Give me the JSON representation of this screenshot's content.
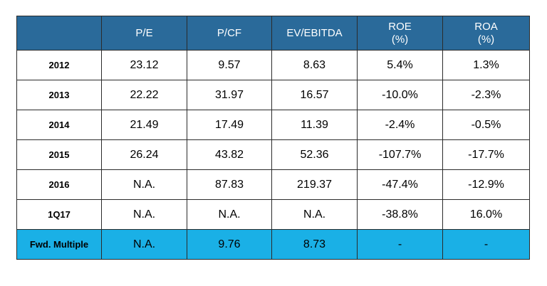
{
  "colors": {
    "header_bg": "#2a6a9a",
    "highlight_bg": "#1ab0e6",
    "border": "#2b2b2b"
  },
  "table": {
    "headers": [
      {
        "label": "",
        "sub": ""
      },
      {
        "label": "P/E",
        "sub": ""
      },
      {
        "label": "P/CF",
        "sub": ""
      },
      {
        "label": "EV/EBITDA",
        "sub": ""
      },
      {
        "label": "ROE",
        "sub": "(%)"
      },
      {
        "label": "ROA",
        "sub": "(%)"
      }
    ],
    "rows": [
      {
        "label": "2012",
        "cells": [
          "23.12",
          "9.57",
          "8.63",
          "5.4%",
          "1.3%"
        ]
      },
      {
        "label": "2013",
        "cells": [
          "22.22",
          "31.97",
          "16.57",
          "-10.0%",
          "-2.3%"
        ]
      },
      {
        "label": "2014",
        "cells": [
          "21.49",
          "17.49",
          "11.39",
          "-2.4%",
          "-0.5%"
        ]
      },
      {
        "label": "2015",
        "cells": [
          "26.24",
          "43.82",
          "52.36",
          "-107.7%",
          "-17.7%"
        ]
      },
      {
        "label": "2016",
        "cells": [
          "N.A.",
          "87.83",
          "219.37",
          "-47.4%",
          "-12.9%"
        ]
      },
      {
        "label": "1Q17",
        "cells": [
          "N.A.",
          "N.A.",
          "N.A.",
          "-38.8%",
          "16.0%"
        ]
      },
      {
        "label": "Fwd. Multiple",
        "cells": [
          "N.A.",
          "9.76",
          "8.73",
          "-",
          "-"
        ]
      }
    ]
  }
}
